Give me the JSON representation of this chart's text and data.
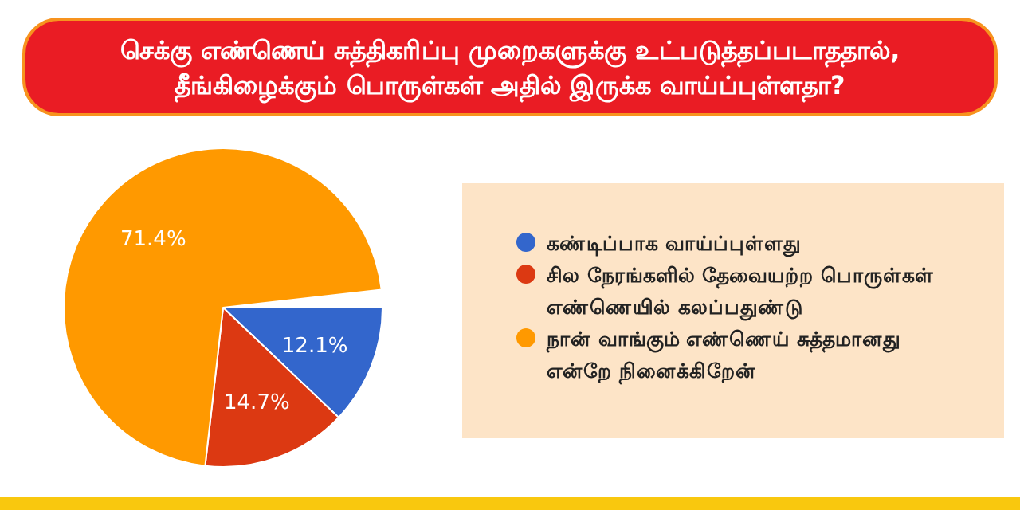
{
  "chart_data": {
    "type": "pie",
    "title": "செக்கு எண்ணெய் சுத்திகரிப்பு முறைகளுக்கு உட்படுத்தப்படாததால், தீங்கிழைக்கும் பொருள்கள் அதில் இருக்க வாய்ப்புள்ளதா?",
    "categories": [
      "கண்டிப்பாக வாய்ப்புள்ளது",
      "சில நேரங்களில் தேவையற்ற பொருள்கள் எண்ணெயில் கலப்பதுண்டு",
      "நான் வாங்கும் எண்ணெய் சுத்தமானது என்றே நினைக்கிறேன்"
    ],
    "values": [
      12.1,
      14.7,
      71.4
    ],
    "value_labels": [
      "12.1%",
      "14.7%",
      "71.4%"
    ],
    "colors": [
      "#3366cc",
      "#dc3912",
      "#ff9900"
    ],
    "legend": "right"
  }
}
